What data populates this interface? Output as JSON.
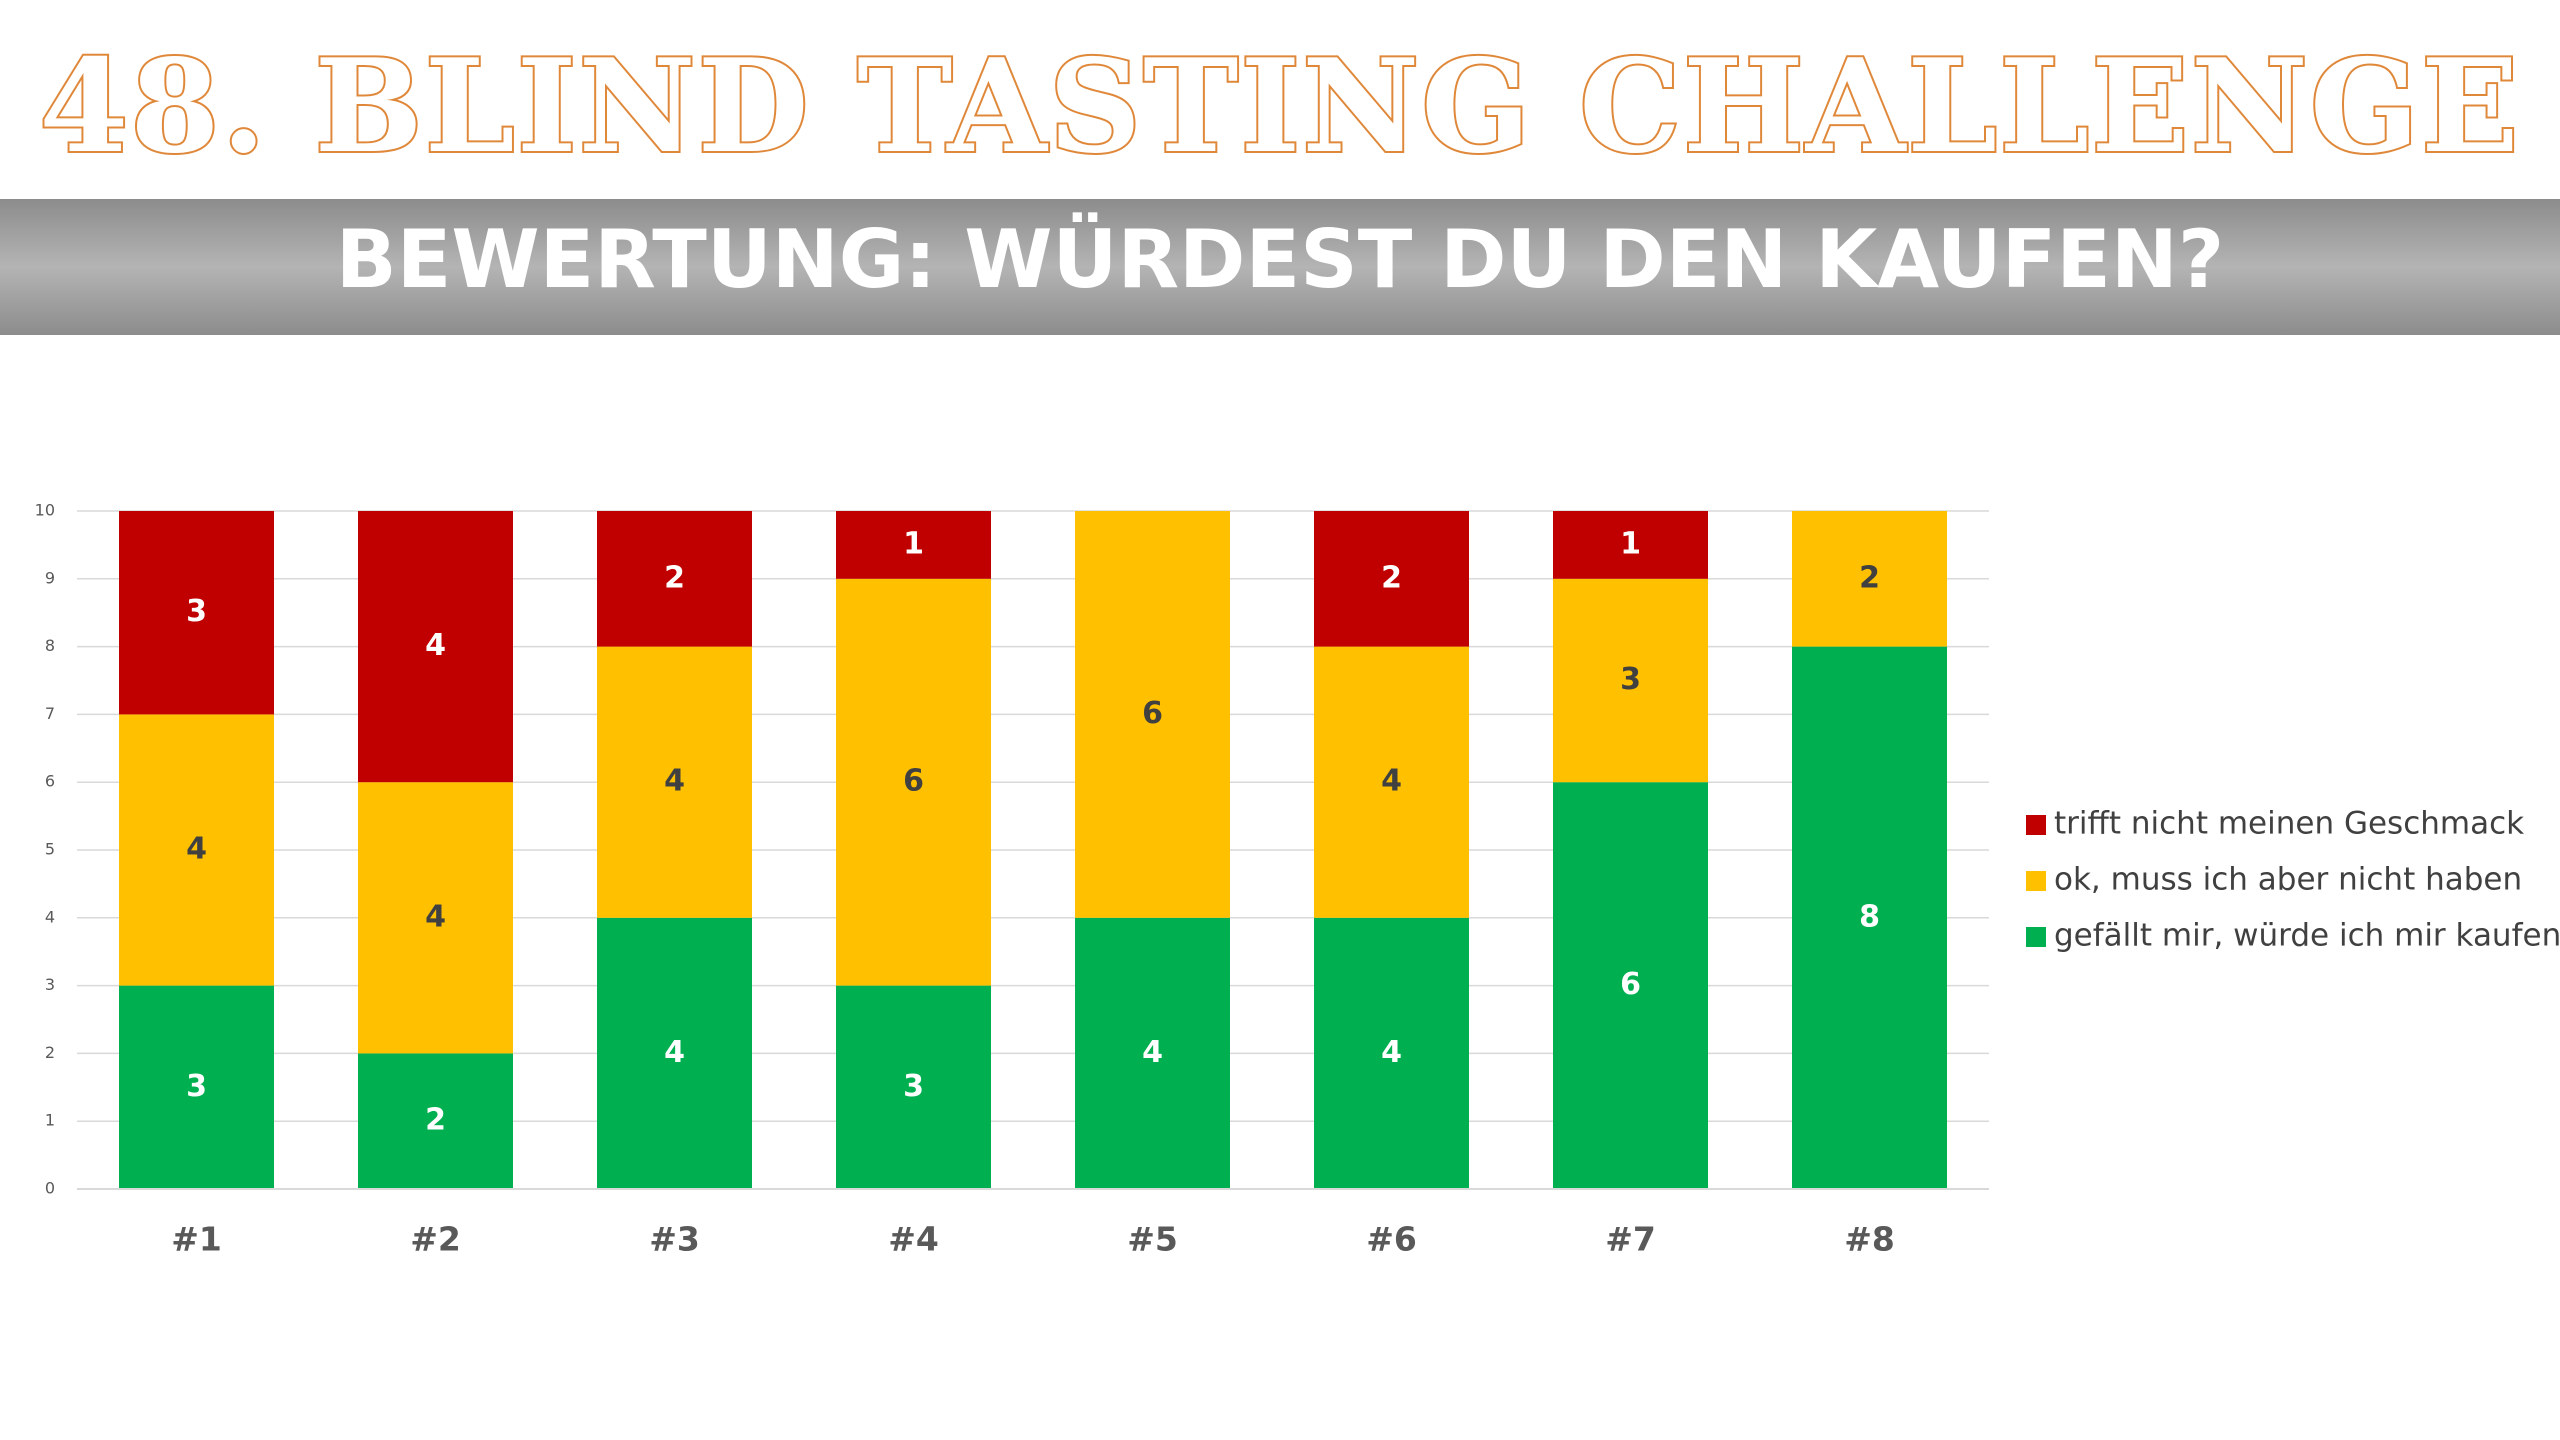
{
  "header": {
    "title": "48. BLIND TASTING CHALLENGE",
    "subtitle": "BEWERTUNG: WÜRDEST DU DEN KAUFEN?"
  },
  "chart_data": {
    "type": "stacked_bar",
    "categories": [
      "#1",
      "#2",
      "#3",
      "#4",
      "#5",
      "#6",
      "#7",
      "#8"
    ],
    "series": [
      {
        "name": "gefällt mir, würde ich mir kaufen",
        "color": "#00b050",
        "values": [
          3,
          2,
          4,
          3,
          4,
          4,
          6,
          8
        ]
      },
      {
        "name": "ok, muss ich aber nicht haben",
        "color": "#ffc000",
        "values": [
          4,
          4,
          4,
          6,
          6,
          4,
          3,
          2
        ]
      },
      {
        "name": "trifft nicht meinen Geschmack",
        "color": "#c00000",
        "values": [
          3,
          4,
          2,
          1,
          null,
          2,
          1,
          null
        ]
      }
    ],
    "ylim": [
      0,
      10
    ],
    "yticks": [
      0,
      1,
      2,
      3,
      4,
      5,
      6,
      7,
      8,
      9,
      10
    ],
    "grid": true,
    "legend": "right"
  }
}
